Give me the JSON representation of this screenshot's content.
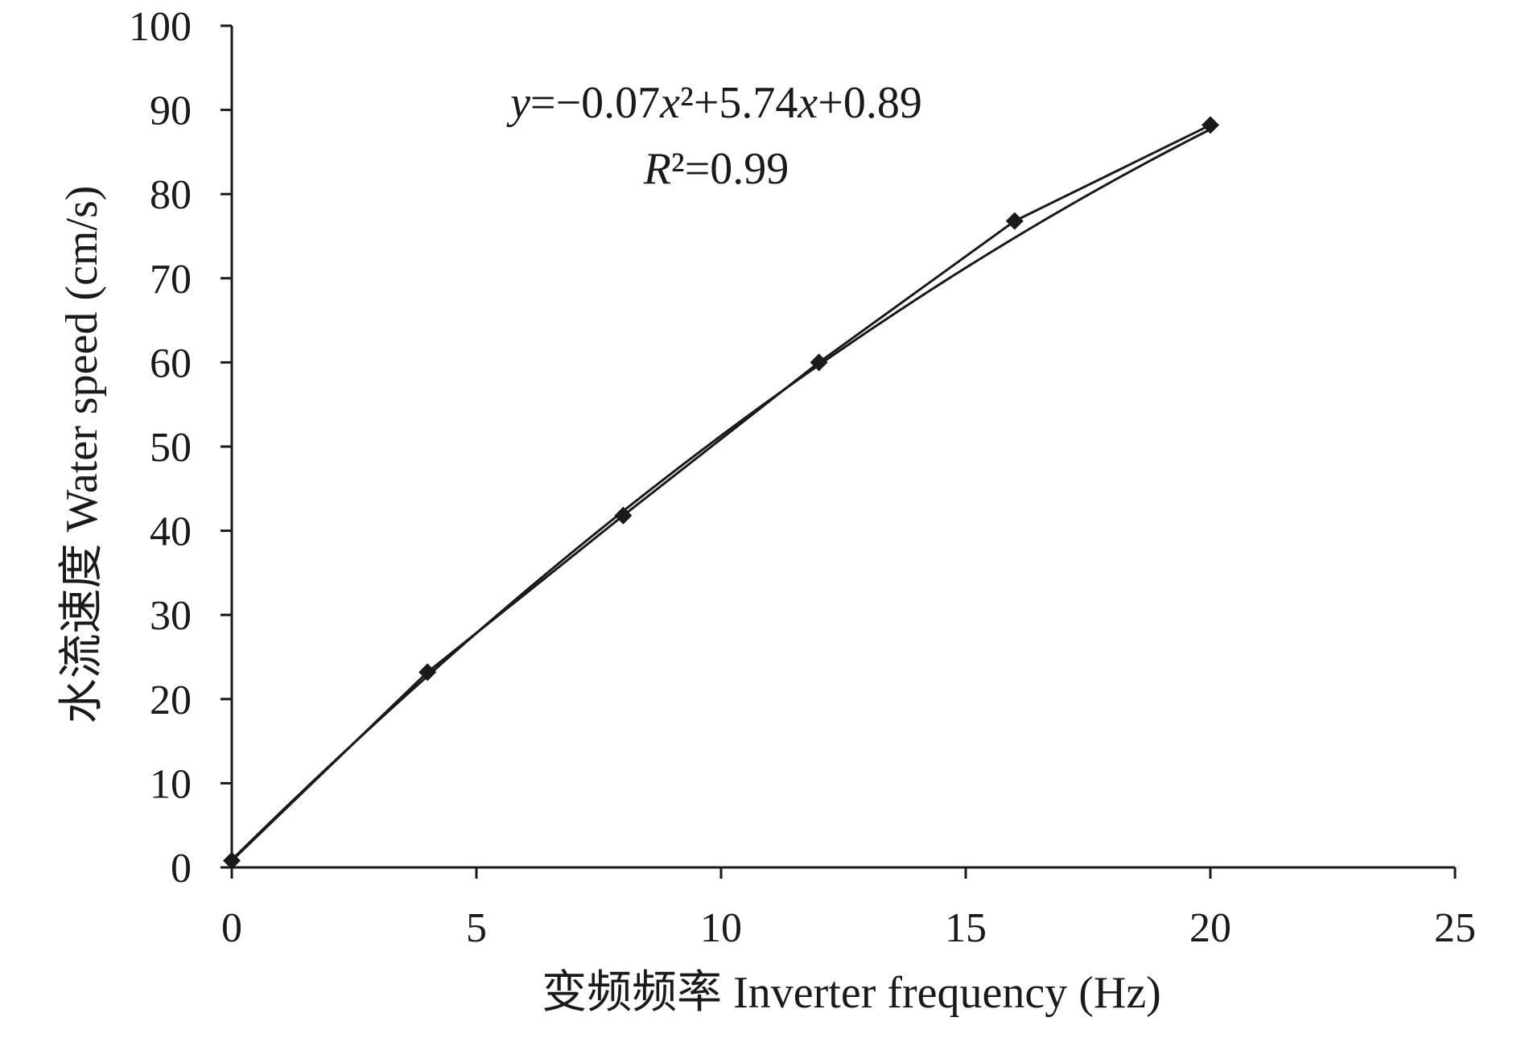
{
  "chart_data": {
    "type": "scatter",
    "xlabel": "变频频率 Inverter frequency (Hz)",
    "ylabel": "水流速度 Water speed (cm/s)",
    "xlim": [
      0,
      25
    ],
    "ylim": [
      0,
      100
    ],
    "x_ticks": [
      "0",
      "5",
      "10",
      "15",
      "20",
      "25"
    ],
    "y_ticks": [
      "0",
      "10",
      "20",
      "30",
      "40",
      "50",
      "60",
      "70",
      "80",
      "90",
      "100"
    ],
    "grid": false,
    "legend": "none",
    "series": [
      {
        "kind": "line-with-markers",
        "marker": "diamond",
        "color": "#1a1a1a",
        "x": [
          0,
          4,
          8,
          12,
          16,
          20
        ],
        "y": [
          0.8,
          23.2,
          41.8,
          60.0,
          76.8,
          88.2
        ]
      },
      {
        "kind": "fitted-trendline",
        "color": "#1a1a1a",
        "coefficients": {
          "a": -0.07,
          "b": 5.74,
          "c": 0.89
        },
        "x_range": [
          0,
          20
        ]
      }
    ],
    "annotation": {
      "equation": "y=−0.07x²+5.74x+0.89",
      "r_squared": "R²=0.99"
    }
  }
}
